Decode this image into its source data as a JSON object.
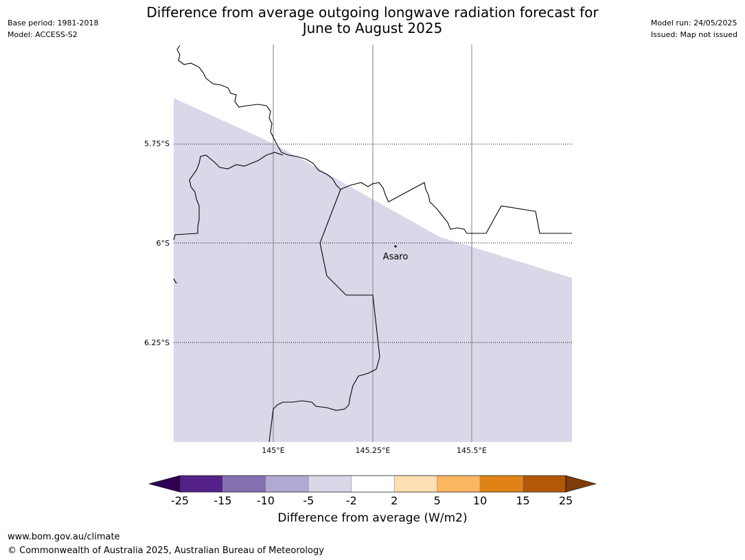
{
  "header": {
    "title_line1": "Difference from average outgoing longwave radiation forecast for",
    "title_line2": "June to August 2025",
    "base_period": "Base period: 1981-2018",
    "model": "Model: ACCESS-S2",
    "model_run": "Model run: 24/05/2025",
    "issued": "Issued: Map not issued"
  },
  "map": {
    "lat_labels": [
      "5.75°S",
      "6°S",
      "6.25°S"
    ],
    "lon_labels": [
      "145°E",
      "145.25°E",
      "145.5°E"
    ],
    "place": {
      "name": "Asaro"
    },
    "fill_color": "#d8d8e9",
    "fill_category": "-5 to -2"
  },
  "colorbar": {
    "ticks": [
      "-25",
      "-15",
      "-10",
      "-5",
      "-2",
      "2",
      "5",
      "10",
      "15",
      "25"
    ],
    "colors": [
      "#2d0050",
      "#542189",
      "#8370b1",
      "#b1a9d3",
      "#d8d8e9",
      "#ffffff",
      "#fedfb2",
      "#fbb660",
      "#e08215",
      "#b35807",
      "#7f3b08"
    ],
    "label": "Difference from average (W/m2)"
  },
  "footer": {
    "url": "www.bom.gov.au/climate",
    "copyright": "© Commonwealth of Australia 2025, Australian Bureau of Meteorology"
  }
}
